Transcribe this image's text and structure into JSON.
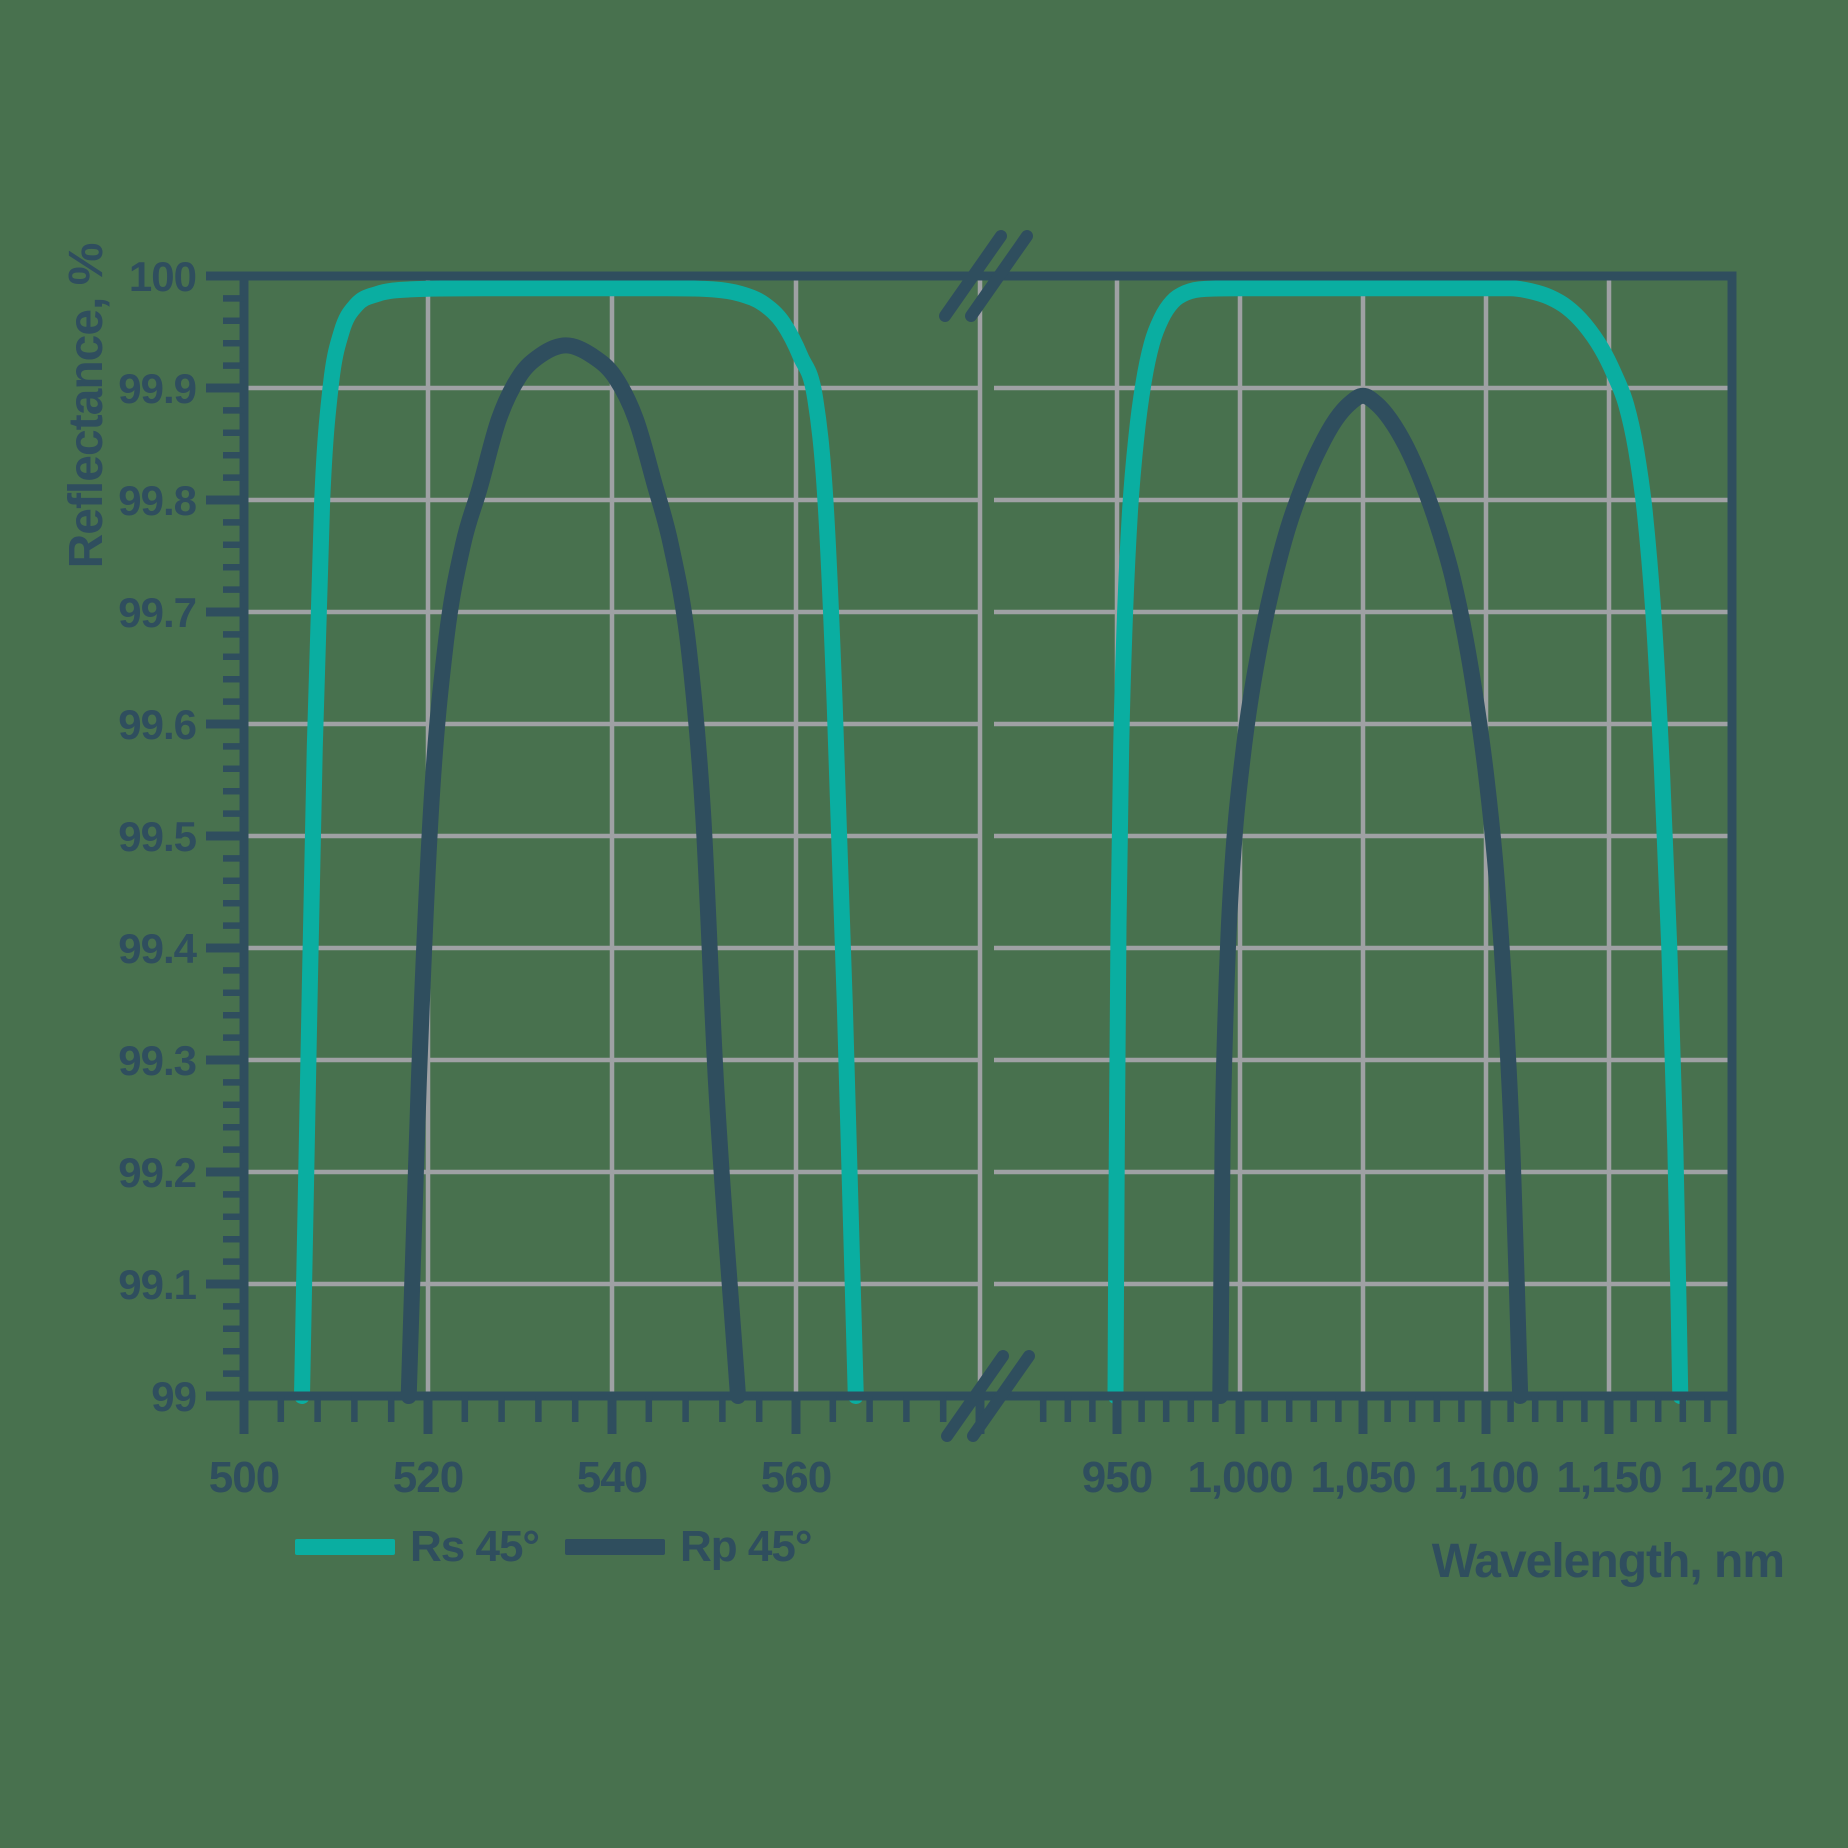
{
  "background_color": "#48714E",
  "palette": {
    "background": "#48714E",
    "slate": "#2F4E5E",
    "teal": "#0AAEA1",
    "gridline": "#9FA1A4"
  },
  "legend": {
    "items": [
      {
        "label": "Rs 45°",
        "color_key": "teal"
      },
      {
        "label": "Rp 45°",
        "color_key": "slate"
      }
    ]
  },
  "chart_data": {
    "type": "line",
    "title": "",
    "xlabel": "Wavelength, nm",
    "ylabel": "Reflectance, %",
    "ylim": [
      99,
      100
    ],
    "grid": true,
    "axis_break_between_panels": true,
    "y_ticks": [
      {
        "v": 100,
        "label": "100"
      },
      {
        "v": 99.9,
        "label": "99.9"
      },
      {
        "v": 99.8,
        "label": "99.8"
      },
      {
        "v": 99.7,
        "label": "99.7"
      },
      {
        "v": 99.6,
        "label": "99.6"
      },
      {
        "v": 99.5,
        "label": "99.5"
      },
      {
        "v": 99.4,
        "label": "99.4"
      },
      {
        "v": 99.3,
        "label": "99.3"
      },
      {
        "v": 99.2,
        "label": "99.2"
      },
      {
        "v": 99.1,
        "label": "99.1"
      },
      {
        "v": 99,
        "label": "99"
      }
    ],
    "y_minor_step": 0.02,
    "y_gridlines": [
      99.1,
      99.2,
      99.3,
      99.4,
      99.5,
      99.6,
      99.7,
      99.8,
      99.9
    ],
    "panels": [
      {
        "domain": [
          500,
          580
        ],
        "major_ticks": [
          {
            "v": 500,
            "label": "500"
          },
          {
            "v": 520,
            "label": "520"
          },
          {
            "v": 540,
            "label": "540"
          },
          {
            "v": 560,
            "label": "560"
          },
          {
            "v": 580,
            "label": ""
          }
        ],
        "minor_ticks_range": [
          504,
          576,
          4
        ],
        "gridlines": [
          520,
          540,
          560,
          580
        ]
      },
      {
        "domain": [
          900,
          1200
        ],
        "major_ticks": [
          {
            "v": 950,
            "label": "950"
          },
          {
            "v": 1000,
            "label": "1,000"
          },
          {
            "v": 1050,
            "label": "1,050"
          },
          {
            "v": 1100,
            "label": "1,100"
          },
          {
            "v": 1150,
            "label": "1,150"
          },
          {
            "v": 1200,
            "label": "1,200"
          }
        ],
        "minor_ticks_range": [
          920,
          1190,
          10
        ],
        "gridlines": [
          950,
          1000,
          1050,
          1100,
          1150
        ]
      }
    ],
    "series": [
      {
        "name": "Rs 45°",
        "color_key": "teal",
        "panel_points": [
          [
            [
              506.3,
              99.0
            ],
            [
              507.0,
              99.3
            ],
            [
              507.7,
              99.58
            ],
            [
              508.5,
              99.8
            ],
            [
              509.4,
              99.9
            ],
            [
              510.6,
              99.95
            ],
            [
              512.2,
              99.974
            ],
            [
              514.5,
              99.984
            ],
            [
              518,
              99.988
            ],
            [
              526,
              99.989
            ],
            [
              546,
              99.989
            ],
            [
              551,
              99.988
            ],
            [
              554,
              99.984
            ],
            [
              556.5,
              99.975
            ],
            [
              558.6,
              99.958
            ],
            [
              560.5,
              99.928
            ],
            [
              562.1,
              99.89
            ],
            [
              563.2,
              99.8
            ],
            [
              564.2,
              99.62
            ],
            [
              565.3,
              99.35
            ],
            [
              566.5,
              99.0
            ]
          ],
          [
            [
              949.4,
              99.0
            ],
            [
              949.9,
              99.22
            ],
            [
              950.6,
              99.42
            ],
            [
              951.7,
              99.58
            ],
            [
              953.3,
              99.7
            ],
            [
              955.3,
              99.79
            ],
            [
              957.8,
              99.855
            ],
            [
              960.8,
              99.905
            ],
            [
              964.2,
              99.94
            ],
            [
              968,
              99.962
            ],
            [
              972.5,
              99.977
            ],
            [
              978,
              99.985
            ],
            [
              986,
              99.9885
            ],
            [
              1000,
              99.989
            ],
            [
              1060,
              99.989
            ],
            [
              1110,
              99.989
            ],
            [
              1118,
              99.9865
            ],
            [
              1126,
              99.981
            ],
            [
              1133,
              99.972
            ],
            [
              1140,
              99.957
            ],
            [
              1147,
              99.935
            ],
            [
              1152,
              99.913
            ],
            [
              1157,
              99.885
            ],
            [
              1161,
              99.845
            ],
            [
              1164.5,
              99.79
            ],
            [
              1168,
              99.7
            ],
            [
              1171.5,
              99.56
            ],
            [
              1174.5,
              99.4
            ],
            [
              1177,
              99.22
            ],
            [
              1179,
              99.0
            ]
          ]
        ]
      },
      {
        "name": "Rp 45°",
        "color_key": "slate",
        "panel_points": [
          [
            [
              517.9,
              99.0
            ],
            [
              519.0,
              99.28
            ],
            [
              520.3,
              99.52
            ],
            [
              521.9,
              99.67
            ],
            [
              523.8,
              99.76
            ],
            [
              525.6,
              99.81
            ],
            [
              527.7,
              99.872
            ],
            [
              529.9,
              99.91
            ],
            [
              532.2,
              99.929
            ],
            [
              535.0,
              99.938
            ],
            [
              537.8,
              99.929
            ],
            [
              540.3,
              99.91
            ],
            [
              542.6,
              99.872
            ],
            [
              544.6,
              99.815
            ],
            [
              546.4,
              99.76
            ],
            [
              548.3,
              99.67
            ],
            [
              549.9,
              99.52
            ],
            [
              551.3,
              99.28
            ],
            [
              553.7,
              99.0
            ]
          ],
          [
            [
              992.0,
              99.0
            ],
            [
              992.9,
              99.22
            ],
            [
              994.0,
              99.33
            ],
            [
              995.5,
              99.42
            ],
            [
              997.8,
              99.5
            ],
            [
              1000.8,
              99.565
            ],
            [
              1004.5,
              99.625
            ],
            [
              1009,
              99.68
            ],
            [
              1014,
              99.73
            ],
            [
              1019.5,
              99.775
            ],
            [
              1026,
              99.815
            ],
            [
              1032.5,
              99.847
            ],
            [
              1039,
              99.872
            ],
            [
              1044.5,
              99.886
            ],
            [
              1050,
              99.893
            ],
            [
              1055.5,
              99.886
            ],
            [
              1061,
              99.872
            ],
            [
              1067.5,
              99.848
            ],
            [
              1074,
              99.816
            ],
            [
              1080.5,
              99.776
            ],
            [
              1086.5,
              99.73
            ],
            [
              1091.8,
              99.675
            ],
            [
              1096.3,
              99.615
            ],
            [
              1100.3,
              99.55
            ],
            [
              1103.6,
              99.48
            ],
            [
              1106.4,
              99.4
            ],
            [
              1108.8,
              99.31
            ],
            [
              1110.9,
              99.21
            ],
            [
              1112.5,
              99.1
            ],
            [
              1113.9,
              99.0
            ]
          ]
        ]
      }
    ]
  }
}
